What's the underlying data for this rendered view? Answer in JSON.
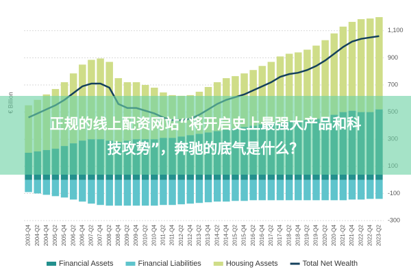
{
  "chart_data": {
    "type": "bar",
    "y_label": "€ Billion",
    "categories": [
      "2003-Q4",
      "2004-Q2",
      "2004-Q4",
      "2005-Q2",
      "2005-Q4",
      "2006-Q2",
      "2006-Q4",
      "2007-Q2",
      "2007-Q4",
      "2008-Q2",
      "2008-Q4",
      "2009-Q2",
      "2009-Q4",
      "2010-Q2",
      "2010-Q4",
      "2011-Q2",
      "2011-Q4",
      "2012-Q2",
      "2012-Q4",
      "2013-Q2",
      "2013-Q4",
      "2014-Q2",
      "2014-Q4",
      "2015-Q2",
      "2015-Q4",
      "2016-Q2",
      "2016-Q4",
      "2017-Q2",
      "2017-Q4",
      "2018-Q2",
      "2018-Q4",
      "2019-Q2",
      "2019-Q4",
      "2020-Q2",
      "2020-Q4",
      "2021-Q2",
      "2021-Q4",
      "2022-Q2",
      "2022-Q4",
      "2023-Q2"
    ],
    "series": [
      {
        "name": "Financial Assets",
        "kind": "bar",
        "color": "#23908d",
        "values": [
          200,
          210,
          220,
          230,
          250,
          270,
          290,
          300,
          300,
          290,
          280,
          290,
          300,
          300,
          300,
          310,
          310,
          320,
          330,
          340,
          350,
          360,
          370,
          380,
          390,
          400,
          410,
          420,
          420,
          430,
          430,
          440,
          450,
          460,
          480,
          500,
          510,
          500,
          500,
          520
        ]
      },
      {
        "name": "Financial Liabilities",
        "kind": "bar",
        "color": "#5fc4cc",
        "values": [
          -90,
          -100,
          -110,
          -120,
          -130,
          -145,
          -160,
          -175,
          -185,
          -190,
          -190,
          -190,
          -190,
          -190,
          -190,
          -185,
          -185,
          -180,
          -175,
          -170,
          -165,
          -160,
          -160,
          -155,
          -155,
          -150,
          -150,
          -150,
          -150,
          -150,
          -150,
          -150,
          -150,
          -150,
          -150,
          -150,
          -145,
          -145,
          -140,
          -140
        ]
      },
      {
        "name": "Housing Assets",
        "kind": "bar",
        "color": "#cfdd88",
        "values": [
          350,
          380,
          410,
          440,
          470,
          515,
          560,
          585,
          595,
          580,
          470,
          430,
          420,
          400,
          380,
          335,
          315,
          300,
          295,
          310,
          335,
          360,
          380,
          385,
          395,
          410,
          430,
          450,
          490,
          500,
          510,
          520,
          540,
          570,
          600,
          630,
          655,
          685,
          690,
          680
        ]
      },
      {
        "name": "Total Net Wealth",
        "kind": "line",
        "color": "#14405c",
        "values": [
          460,
          490,
          520,
          550,
          590,
          640,
          690,
          710,
          710,
          680,
          560,
          530,
          530,
          510,
          490,
          460,
          440,
          440,
          450,
          480,
          520,
          560,
          590,
          610,
          630,
          660,
          690,
          720,
          760,
          780,
          790,
          810,
          840,
          880,
          930,
          980,
          1020,
          1040,
          1050,
          1060
        ]
      }
    ],
    "ylim": [
      -300,
      1200
    ],
    "yticks": [
      -300,
      -100,
      100,
      300,
      500,
      700,
      900,
      {
        "value": 1100,
        "label": "1,100"
      }
    ],
    "grid": true
  },
  "banner": {
    "lines": [
      "正规的线上配资网站“将开启史上最强大产品和科",
      "技攻势”，奔驰的底气是什么？"
    ]
  }
}
